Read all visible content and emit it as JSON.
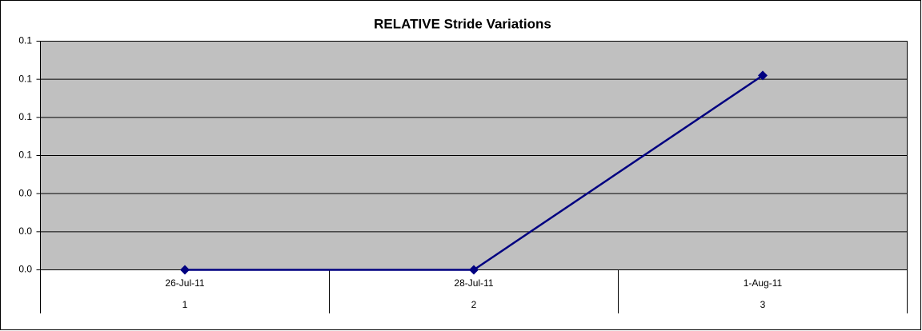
{
  "chart_data": {
    "type": "line",
    "title": "RELATIVE Stride Variations",
    "categories": [
      "26-Jul-11",
      "28-Jul-11",
      "1-Aug-11"
    ],
    "sub_categories": [
      "1",
      "2",
      "3"
    ],
    "values": [
      0,
      0,
      0.102
    ],
    "color": "#000080",
    "ylim": [
      0,
      0.12
    ],
    "yticks": [
      {
        "value": 0,
        "label": "0.0"
      },
      {
        "value": 0.02,
        "label": "0.0"
      },
      {
        "value": 0.04,
        "label": "0.0"
      },
      {
        "value": 0.06,
        "label": "0.1"
      },
      {
        "value": 0.08,
        "label": "0.1"
      },
      {
        "value": 0.1,
        "label": "0.1"
      },
      {
        "value": 0.12,
        "label": "0.1"
      }
    ],
    "grid": true
  }
}
